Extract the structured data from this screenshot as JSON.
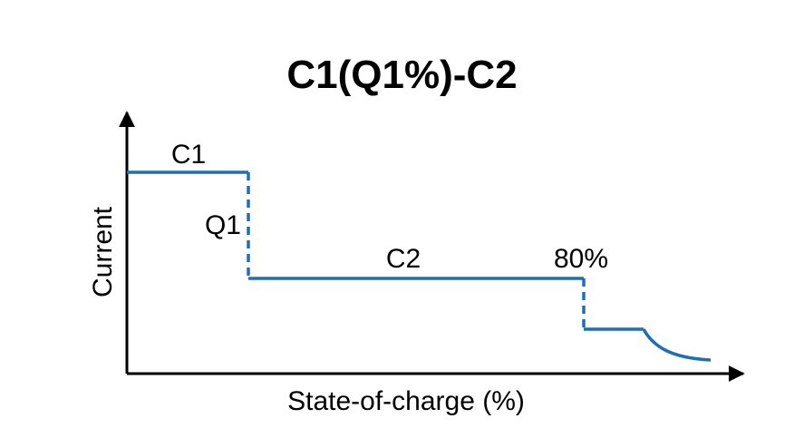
{
  "title": "C1(Q1%)-C2",
  "axes": {
    "ylabel": "Current",
    "xlabel": "State-of-charge (%)"
  },
  "labels": {
    "c1": "C1",
    "q1": "Q1",
    "c2": "C2",
    "threshold": "80%"
  },
  "colors": {
    "profile": "#1f6fb7",
    "axis": "#000000"
  }
}
